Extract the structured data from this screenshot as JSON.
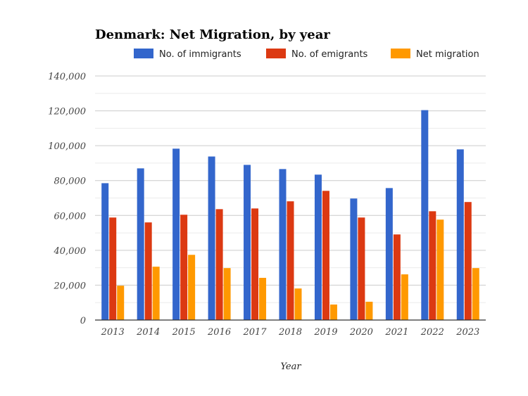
{
  "chart_data": {
    "type": "bar",
    "title": "Denmark: Net Migration, by year",
    "xlabel": "Year",
    "ylabel": "",
    "ylim": [
      0,
      140000
    ],
    "yticks": [
      0,
      20000,
      40000,
      60000,
      80000,
      100000,
      120000,
      140000
    ],
    "ytick_labels": [
      "0",
      "20,000",
      "40,000",
      "60,000",
      "80,000",
      "100,000",
      "120,000",
      "140,000"
    ],
    "grid": true,
    "legend_position": "top",
    "categories": [
      "2013",
      "2014",
      "2015",
      "2016",
      "2017",
      "2018",
      "2019",
      "2020",
      "2021",
      "2022",
      "2023"
    ],
    "series": [
      {
        "name": "No. of immigrants",
        "color": "#3366cc",
        "values": [
          78500,
          87000,
          98300,
          93800,
          89000,
          86600,
          83400,
          69700,
          75700,
          120400,
          97900
        ]
      },
      {
        "name": "No. of emigrants",
        "color": "#dc3912",
        "values": [
          58800,
          56000,
          60400,
          63600,
          64000,
          68100,
          74100,
          58800,
          49100,
          62400,
          67700
        ]
      },
      {
        "name": "Net migration",
        "color": "#ff9900",
        "values": [
          19700,
          30600,
          37400,
          29800,
          24200,
          18100,
          8900,
          10500,
          26200,
          57600,
          29800
        ]
      }
    ]
  }
}
